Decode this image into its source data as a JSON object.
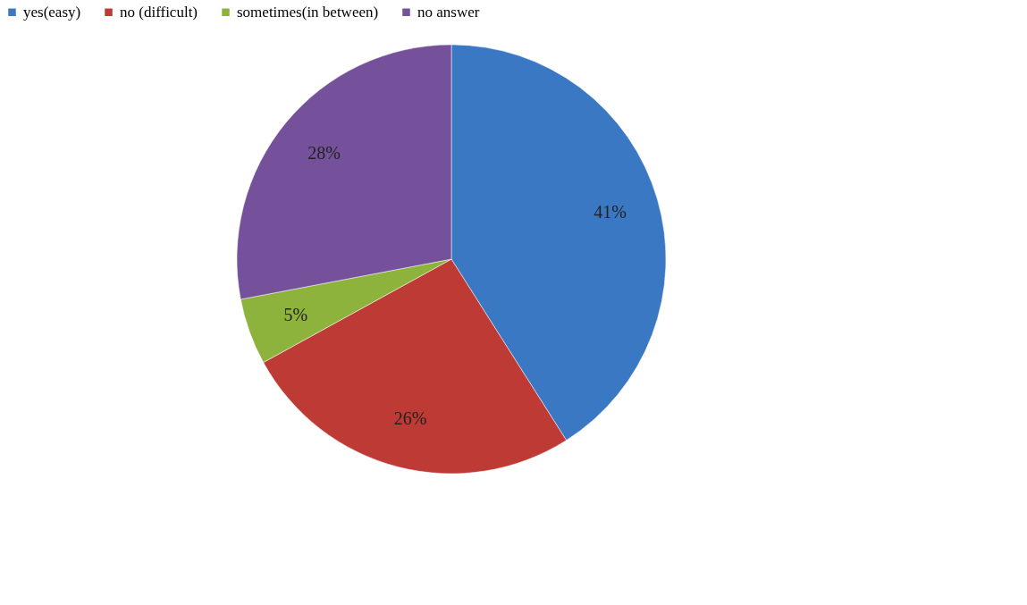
{
  "chart_data": {
    "type": "pie",
    "categories": [
      "yes(easy)",
      "no (difficult)",
      "sometimes(in between)",
      "no answer"
    ],
    "values": [
      41,
      26,
      5,
      28
    ],
    "colors": [
      "#3b78c4",
      "#bd3a35",
      "#8db33c",
      "#74519a"
    ],
    "value_labels": [
      "41%",
      "26%",
      "5%",
      "28%"
    ],
    "legend": "top"
  }
}
